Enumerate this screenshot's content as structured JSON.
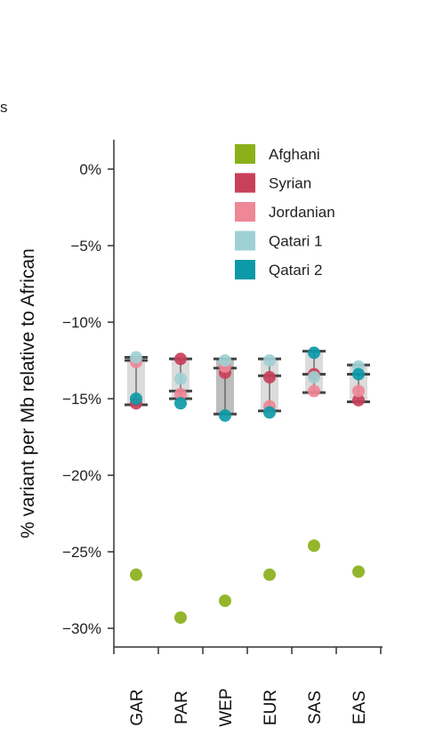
{
  "page": {
    "fragment_text": "s"
  },
  "chart_data": {
    "type": "scatter",
    "ylabel": "% variant  per Mb relative to African",
    "ylim": [
      -31,
      2
    ],
    "y_ticks": [
      0,
      -5,
      -10,
      -15,
      -20,
      -25,
      -30
    ],
    "y_tick_labels": [
      "0%",
      "−5%",
      "−10%",
      "−15%",
      "−20%",
      "−25%",
      "−30%"
    ],
    "categories": [
      "GAR",
      "PAR",
      "WEP",
      "EUR",
      "SAS",
      "EAS"
    ],
    "series": [
      {
        "name": "Afghani",
        "color": "#8bb01a",
        "values": [
          -26.5,
          -29.3,
          -28.2,
          -26.5,
          -24.6,
          -26.3
        ]
      },
      {
        "name": "Syrian",
        "color": "#c9405a",
        "values": [
          -15.3,
          -12.4,
          -13.3,
          -13.6,
          -13.4,
          -15.1
        ]
      },
      {
        "name": "Jordanian",
        "color": "#ee8796",
        "values": [
          -12.6,
          -14.7,
          -12.9,
          -15.5,
          -14.5,
          -14.5
        ]
      },
      {
        "name": "Qatari 1",
        "color": "#9fd0d4",
        "values": [
          -12.3,
          -13.7,
          -12.5,
          -12.5,
          -13.6,
          -12.9
        ]
      },
      {
        "name": "Qatari 2",
        "color": "#0d9aa8",
        "values": [
          -15.0,
          -15.3,
          -16.1,
          -15.9,
          -12.0,
          -13.4
        ]
      }
    ],
    "ranges": [
      {
        "category": "GAR",
        "max": -12.3,
        "mid": -12.5,
        "min": -15.4,
        "shade": "#dcdcdc"
      },
      {
        "category": "PAR",
        "max": -12.4,
        "mid": -14.5,
        "min": -15.0,
        "shade": "#dcdcdc"
      },
      {
        "category": "WEP",
        "max": -12.4,
        "mid": -13.0,
        "min": -16.0,
        "shade": "#bdbdbd"
      },
      {
        "category": "EUR",
        "max": -12.4,
        "mid": -13.5,
        "min": -15.8,
        "shade": "#dcdcdc"
      },
      {
        "category": "SAS",
        "max": -11.9,
        "mid": -13.4,
        "min": -14.6,
        "shade": "#dcdcdc"
      },
      {
        "category": "EAS",
        "max": -12.8,
        "mid": -13.4,
        "min": -15.2,
        "shade": "#dcdcdc"
      }
    ],
    "legend_position": "top-right",
    "grid": false
  }
}
